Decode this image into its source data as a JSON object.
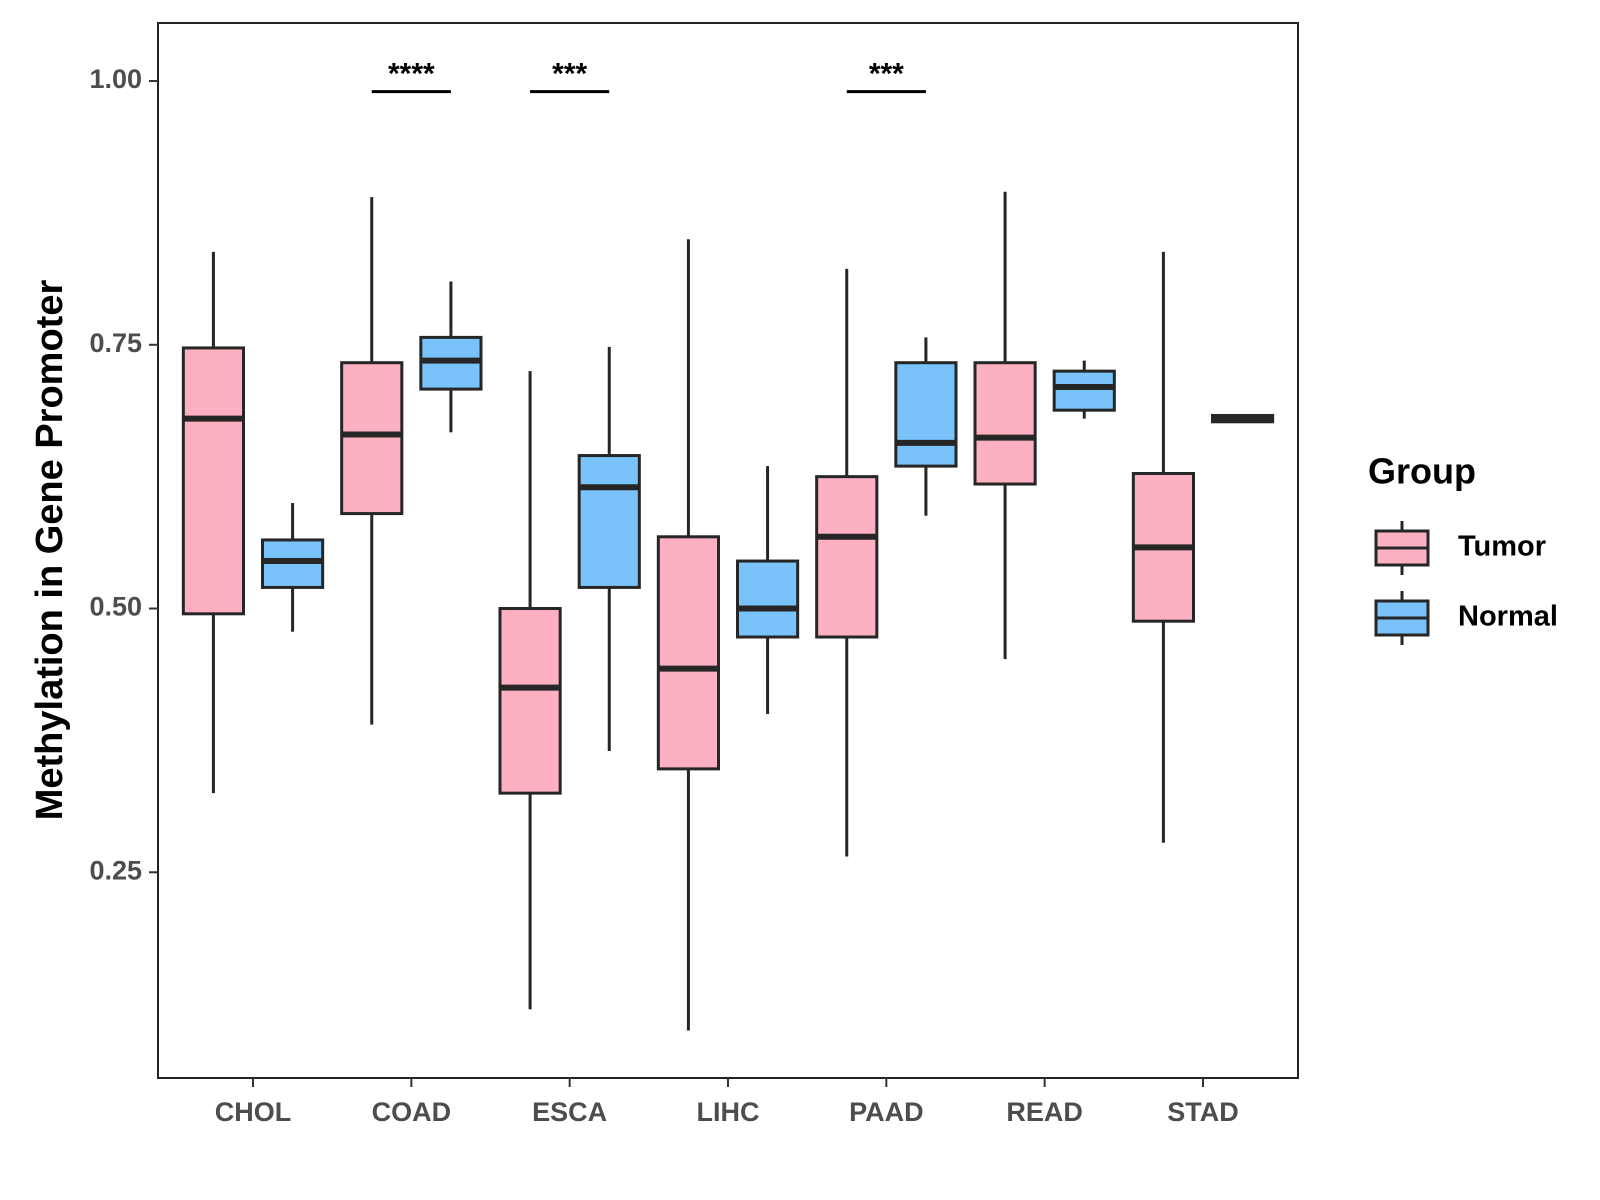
{
  "chart_data": {
    "type": "boxplot",
    "title": "",
    "xlabel": "",
    "ylabel": "Methylation in Gene Promoter",
    "ylim": [
      0.055,
      1.055
    ],
    "yticks": [
      0.25,
      0.5,
      0.75,
      1.0
    ],
    "ytick_labels": [
      "0.25",
      "0.50",
      "0.75",
      "1.00"
    ],
    "categories": [
      "CHOL",
      "COAD",
      "ESCA",
      "LIHC",
      "PAAD",
      "READ",
      "STAD"
    ],
    "legend": {
      "title": "Group",
      "position": "right",
      "entries": [
        "Tumor",
        "Normal"
      ]
    },
    "colors": {
      "Tumor": "#FDB0C1",
      "Normal": "#79C2FA",
      "stroke": "#262626"
    },
    "series": [
      {
        "name": "Tumor",
        "boxes": [
          {
            "category": "CHOL",
            "min": 0.325,
            "q1": 0.495,
            "median": 0.68,
            "q3": 0.747,
            "max": 0.838
          },
          {
            "category": "COAD",
            "min": 0.39,
            "q1": 0.59,
            "median": 0.665,
            "q3": 0.733,
            "max": 0.89
          },
          {
            "category": "ESCA",
            "min": 0.12,
            "q1": 0.325,
            "median": 0.425,
            "q3": 0.5,
            "max": 0.725
          },
          {
            "category": "LIHC",
            "min": 0.1,
            "q1": 0.348,
            "median": 0.443,
            "q3": 0.568,
            "max": 0.85
          },
          {
            "category": "PAAD",
            "min": 0.265,
            "q1": 0.473,
            "median": 0.568,
            "q3": 0.625,
            "max": 0.822
          },
          {
            "category": "READ",
            "min": 0.452,
            "q1": 0.618,
            "median": 0.662,
            "q3": 0.733,
            "max": 0.895
          },
          {
            "category": "STAD",
            "min": 0.278,
            "q1": 0.488,
            "median": 0.558,
            "q3": 0.628,
            "max": 0.838
          }
        ]
      },
      {
        "name": "Normal",
        "boxes": [
          {
            "category": "CHOL",
            "min": 0.478,
            "q1": 0.52,
            "median": 0.545,
            "q3": 0.565,
            "max": 0.6
          },
          {
            "category": "COAD",
            "min": 0.667,
            "q1": 0.708,
            "median": 0.735,
            "q3": 0.757,
            "max": 0.81
          },
          {
            "category": "ESCA",
            "min": 0.365,
            "q1": 0.52,
            "median": 0.615,
            "q3": 0.645,
            "max": 0.748
          },
          {
            "category": "LIHC",
            "min": 0.4,
            "q1": 0.473,
            "median": 0.5,
            "q3": 0.545,
            "max": 0.635
          },
          {
            "category": "PAAD",
            "min": 0.588,
            "q1": 0.635,
            "median": 0.657,
            "q3": 0.733,
            "max": 0.757
          },
          {
            "category": "READ",
            "min": 0.68,
            "q1": 0.688,
            "median": 0.71,
            "q3": 0.725,
            "max": 0.735
          },
          {
            "category": "STAD",
            "min": 0.676,
            "q1": 0.677,
            "median": 0.68,
            "q3": 0.683,
            "max": 0.684
          }
        ]
      }
    ],
    "significance": [
      {
        "category": "COAD",
        "label": "****",
        "y": 0.99
      },
      {
        "category": "ESCA",
        "label": "***",
        "y": 0.99
      },
      {
        "category": "PAAD",
        "label": "***",
        "y": 0.99
      }
    ]
  }
}
